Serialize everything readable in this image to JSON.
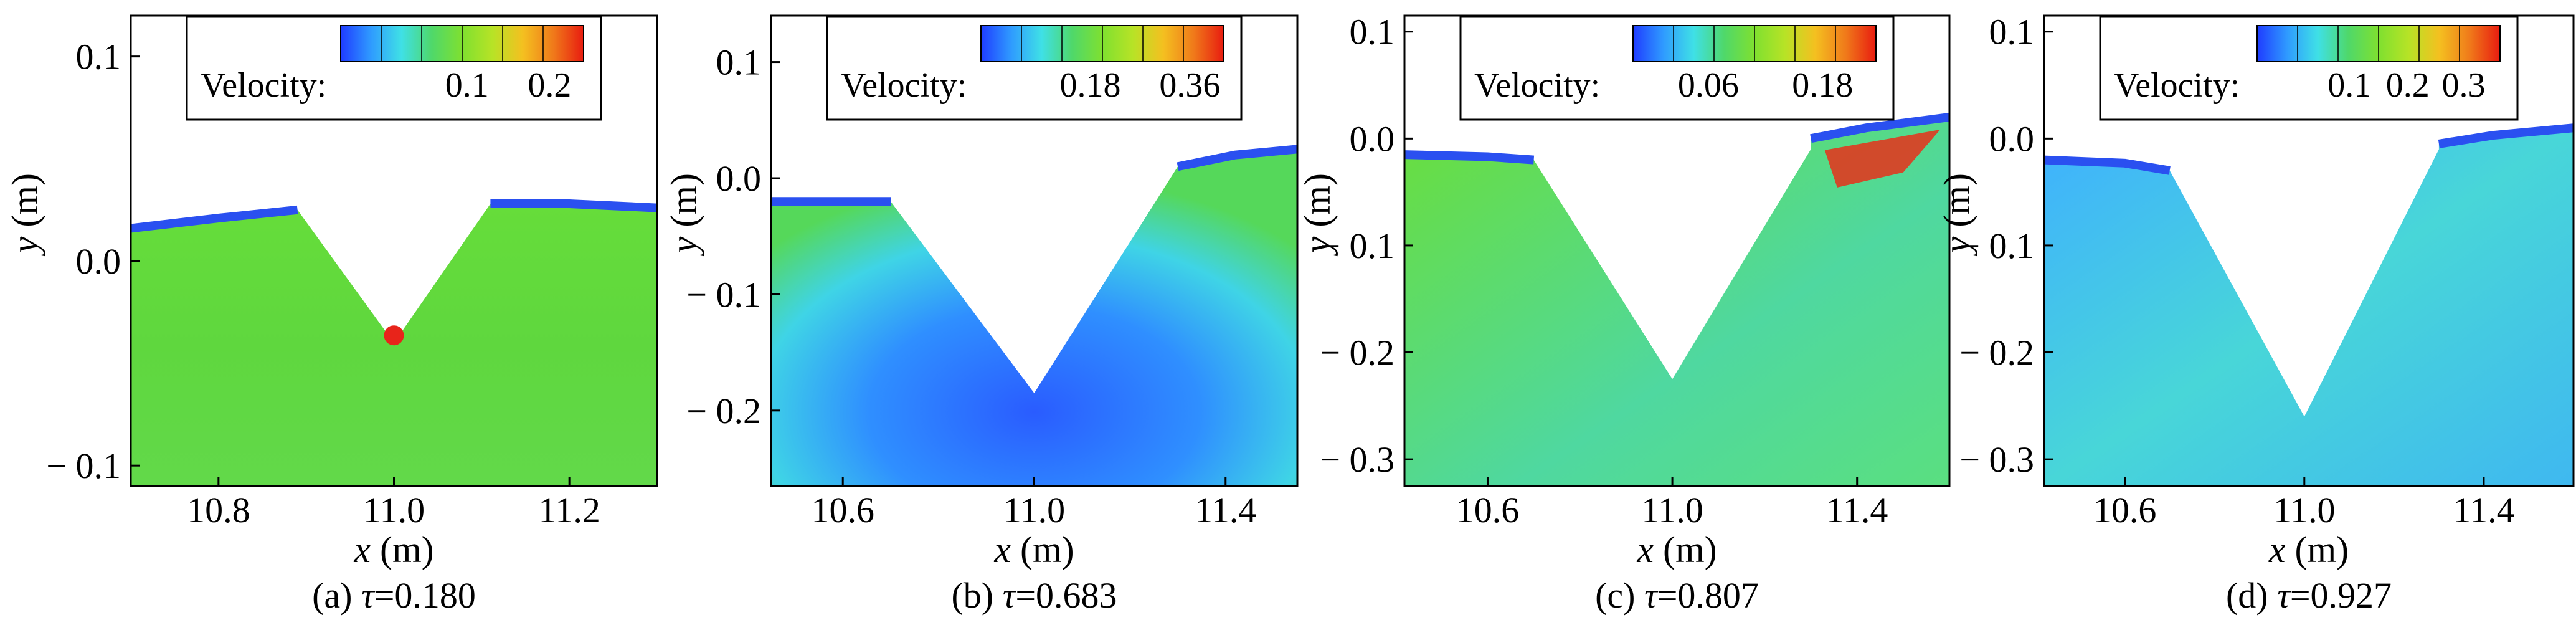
{
  "colorbar_colors": [
    "#1f3cff",
    "#2f9bff",
    "#3fe0e6",
    "#4fd86a",
    "#7fe030",
    "#b7e326",
    "#f4c020",
    "#f07a1a",
    "#e81c10"
  ],
  "chart_data": [
    {
      "type": "heatmap",
      "caption_prefix": "(a) ",
      "tau_symbol": "τ",
      "caption_value": "=0.180",
      "xlabel_var": "x",
      "xlabel_unit": " (m)",
      "ylabel_var": "y",
      "ylabel_unit": " (m)",
      "xlim": [
        10.7,
        11.3
      ],
      "ylim": [
        -0.11,
        0.12
      ],
      "xticks": [
        10.8,
        11.0,
        11.2
      ],
      "xtick_labels": [
        "10.8",
        "11.0",
        "11.2"
      ],
      "yticks": [
        0.1,
        0.0,
        -0.1
      ],
      "ytick_labels": [
        "0.1",
        "0.0",
        "− 0.1"
      ],
      "colorbar_label": "Velocity:",
      "colorbar_ticks": [
        "0.1",
        "0.2"
      ],
      "colorbar_tick_fractions": [
        0.52,
        0.86
      ],
      "v_notch": {
        "left": [
          10.89,
          0.025
        ],
        "apex": [
          11.0,
          -0.04
        ],
        "right": [
          11.11,
          0.028
        ]
      },
      "surface_left": [
        [
          10.7,
          0.016
        ],
        [
          10.8,
          0.021
        ],
        [
          10.89,
          0.025
        ]
      ],
      "surface_right": [
        [
          11.11,
          0.028
        ],
        [
          11.2,
          0.028
        ],
        [
          11.3,
          0.026
        ]
      ],
      "bottom_y": -0.11
    },
    {
      "type": "heatmap",
      "caption_prefix": "(b) ",
      "tau_symbol": "τ",
      "caption_value": "=0.683",
      "xlabel_var": "x",
      "xlabel_unit": " (m)",
      "ylabel_var": "y",
      "ylabel_unit": " (m)",
      "xlim": [
        10.45,
        11.55
      ],
      "ylim": [
        -0.265,
        0.14
      ],
      "xticks": [
        10.6,
        11.0,
        11.4
      ],
      "xtick_labels": [
        "10.6",
        "11.0",
        "11.4"
      ],
      "yticks": [
        0.1,
        0.0,
        -0.1,
        -0.2
      ],
      "ytick_labels": [
        "0.1",
        "0.0",
        "− 0.1",
        "− 0.2"
      ],
      "colorbar_label": "Velocity:",
      "colorbar_ticks": [
        "0.18",
        "0.36"
      ],
      "colorbar_tick_fractions": [
        0.45,
        0.86
      ],
      "v_notch": {
        "left": [
          10.7,
          -0.02
        ],
        "apex": [
          11.0,
          -0.185
        ],
        "right": [
          11.3,
          0.01
        ]
      },
      "surface_left": [
        [
          10.45,
          -0.02
        ],
        [
          10.6,
          -0.02
        ],
        [
          10.7,
          -0.02
        ]
      ],
      "surface_right": [
        [
          11.3,
          0.01
        ],
        [
          11.42,
          0.02
        ],
        [
          11.55,
          0.025
        ]
      ],
      "bottom_y": -0.265
    },
    {
      "type": "heatmap",
      "caption_prefix": "(c) ",
      "tau_symbol": "τ",
      "caption_value": "=0.807",
      "xlabel_var": "x",
      "xlabel_unit": " (m)",
      "ylabel_var": "y",
      "ylabel_unit": " (m)",
      "xlim": [
        10.42,
        11.6
      ],
      "ylim": [
        -0.325,
        0.115
      ],
      "xticks": [
        10.6,
        11.0,
        11.4
      ],
      "xtick_labels": [
        "10.6",
        "11.0",
        "11.4"
      ],
      "yticks": [
        0.1,
        0.0,
        -0.1,
        -0.2,
        -0.3
      ],
      "ytick_labels": [
        "0.1",
        "0.0",
        "− 0.1",
        "− 0.2",
        "− 0.3"
      ],
      "colorbar_label": "Velocity:",
      "colorbar_ticks": [
        "0.06",
        "0.18"
      ],
      "colorbar_tick_fractions": [
        0.31,
        0.78
      ],
      "v_notch": {
        "left": [
          10.7,
          -0.02
        ],
        "apex": [
          11.0,
          -0.225
        ],
        "right": [
          11.3,
          -0.01
        ]
      },
      "surface_left": [
        [
          10.42,
          -0.015
        ],
        [
          10.6,
          -0.017
        ],
        [
          10.7,
          -0.02
        ]
      ],
      "surface_right": [
        [
          11.3,
          0.0
        ],
        [
          11.42,
          0.01
        ],
        [
          11.6,
          0.02
        ]
      ],
      "bottom_y": -0.325
    },
    {
      "type": "heatmap",
      "caption_prefix": "(d) ",
      "tau_symbol": "τ",
      "caption_value": "=0.927",
      "xlabel_var": "x",
      "xlabel_unit": " (m)",
      "ylabel_var": "y",
      "ylabel_unit": " (m)",
      "xlim": [
        10.42,
        11.6
      ],
      "ylim": [
        -0.325,
        0.115
      ],
      "xticks": [
        10.6,
        11.0,
        11.4
      ],
      "xtick_labels": [
        "10.6",
        "11.0",
        "11.4"
      ],
      "yticks": [
        0.1,
        0.0,
        -0.1,
        -0.2,
        -0.3
      ],
      "ytick_labels": [
        "0.1",
        "0.0",
        "− 0.1",
        "− 0.2",
        "− 0.3"
      ],
      "colorbar_label": "Velocity:",
      "colorbar_ticks": [
        "0.1",
        "0.2",
        "0.3"
      ],
      "colorbar_tick_fractions": [
        0.38,
        0.62,
        0.85
      ],
      "v_notch": {
        "left": [
          10.7,
          -0.03
        ],
        "apex": [
          11.0,
          -0.26
        ],
        "right": [
          11.3,
          -0.01
        ]
      },
      "surface_left": [
        [
          10.42,
          -0.02
        ],
        [
          10.6,
          -0.023
        ],
        [
          10.7,
          -0.03
        ]
      ],
      "surface_right": [
        [
          11.3,
          -0.005
        ],
        [
          11.42,
          0.003
        ],
        [
          11.6,
          0.01
        ]
      ],
      "bottom_y": -0.325
    }
  ]
}
